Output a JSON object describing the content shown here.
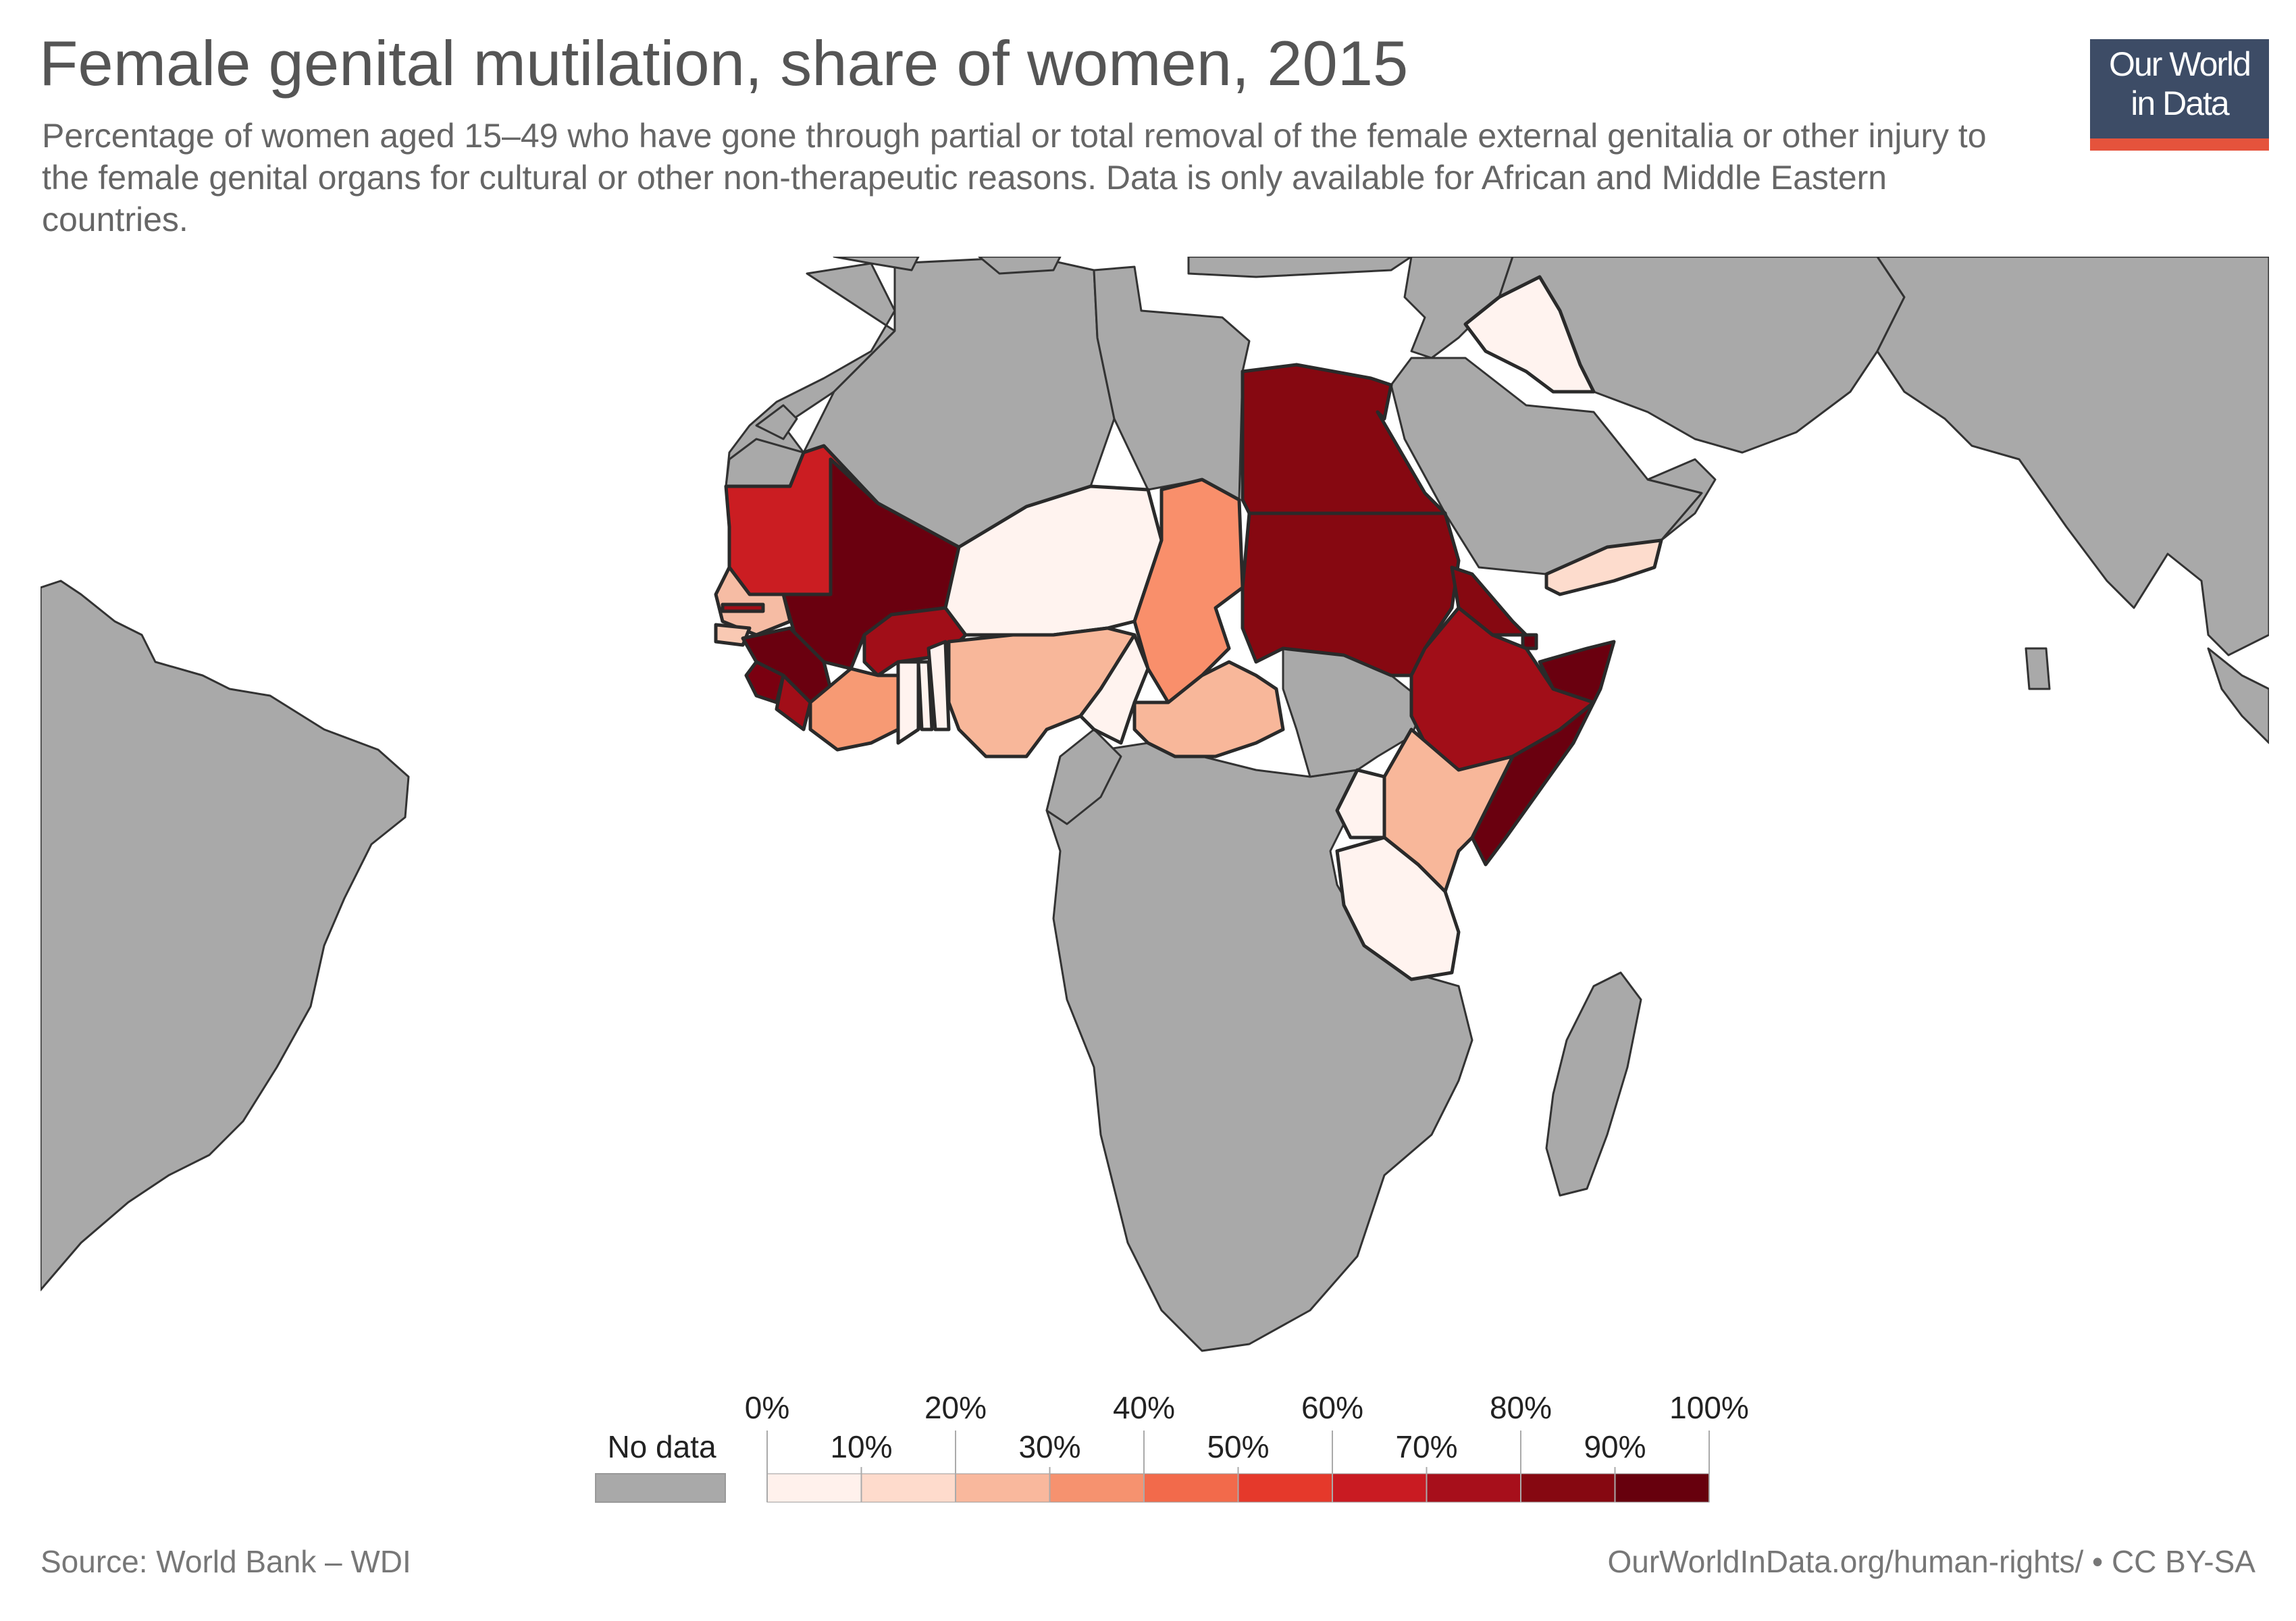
{
  "header": {
    "title": "Female genital mutilation, share of women, 2015",
    "subtitle": "Percentage of women aged 15–49 who have gone through partial or total removal of the female external genitalia or other injury to the female genital organs for cultural or other non-therapeutic reasons. Data is only available for African and Middle Eastern countries."
  },
  "logo": {
    "line1": "Our World",
    "line2": "in Data",
    "bg_color": "#3d4c66",
    "accent_color": "#e5533c"
  },
  "map": {
    "no_data_color": "#a9a9a9",
    "ocean_color": "#ffffff",
    "countries_with_data": [
      {
        "name": "Mauritania",
        "color": "#cb1d22"
      },
      {
        "name": "Mali",
        "color": "#6a000f"
      },
      {
        "name": "Senegal",
        "color": "#f6bca4"
      },
      {
        "name": "Gambia",
        "color": "#a10e18"
      },
      {
        "name": "Guinea-Bissau",
        "color": "#f9c9b3"
      },
      {
        "name": "Guinea",
        "color": "#6a000f"
      },
      {
        "name": "Sierra Leone",
        "color": "#7a0010"
      },
      {
        "name": "Liberia",
        "color": "#a10e18"
      },
      {
        "name": "Burkina Faso",
        "color": "#a10e18"
      },
      {
        "name": "Cote d'Ivoire",
        "color": "#f79a74"
      },
      {
        "name": "Ghana",
        "color": "#fff3ef"
      },
      {
        "name": "Togo",
        "color": "#fff3ef"
      },
      {
        "name": "Benin",
        "color": "#fff3ef"
      },
      {
        "name": "Niger",
        "color": "#fff3ef"
      },
      {
        "name": "Nigeria",
        "color": "#f8b79a"
      },
      {
        "name": "Chad",
        "color": "#f98f6b"
      },
      {
        "name": "Cameroon",
        "color": "#fff3ef"
      },
      {
        "name": "Central African Republic",
        "color": "#f8b79a"
      },
      {
        "name": "Egypt",
        "color": "#860811"
      },
      {
        "name": "Sudan",
        "color": "#860811"
      },
      {
        "name": "Eritrea",
        "color": "#860811"
      },
      {
        "name": "Djibouti",
        "color": "#6a000f"
      },
      {
        "name": "Ethiopia",
        "color": "#a10e18"
      },
      {
        "name": "Somalia",
        "color": "#6a000f"
      },
      {
        "name": "Kenya",
        "color": "#f8b79a"
      },
      {
        "name": "Uganda",
        "color": "#fff3ef"
      },
      {
        "name": "Tanzania",
        "color": "#fff3ef"
      },
      {
        "name": "Yemen",
        "color": "#fddccd"
      },
      {
        "name": "Iraq",
        "color": "#fff3ef"
      }
    ]
  },
  "legend": {
    "no_data_label": "No data",
    "bins": [
      {
        "color": "#fff1ec"
      },
      {
        "color": "#fedbcc"
      },
      {
        "color": "#f9b89d"
      },
      {
        "color": "#f6926f"
      },
      {
        "color": "#f26a4b"
      },
      {
        "color": "#e5392b"
      },
      {
        "color": "#c91b22"
      },
      {
        "color": "#a70f1b"
      },
      {
        "color": "#860811"
      },
      {
        "color": "#67000d"
      }
    ],
    "top_ticks": [
      "0%",
      "20%",
      "40%",
      "60%",
      "80%",
      "100%"
    ],
    "bottom_ticks": [
      "10%",
      "30%",
      "50%",
      "70%",
      "90%"
    ]
  },
  "footer": {
    "source": "Source: World Bank – WDI",
    "url": "OurWorldInData.org/human-rights/ • CC BY-SA"
  }
}
